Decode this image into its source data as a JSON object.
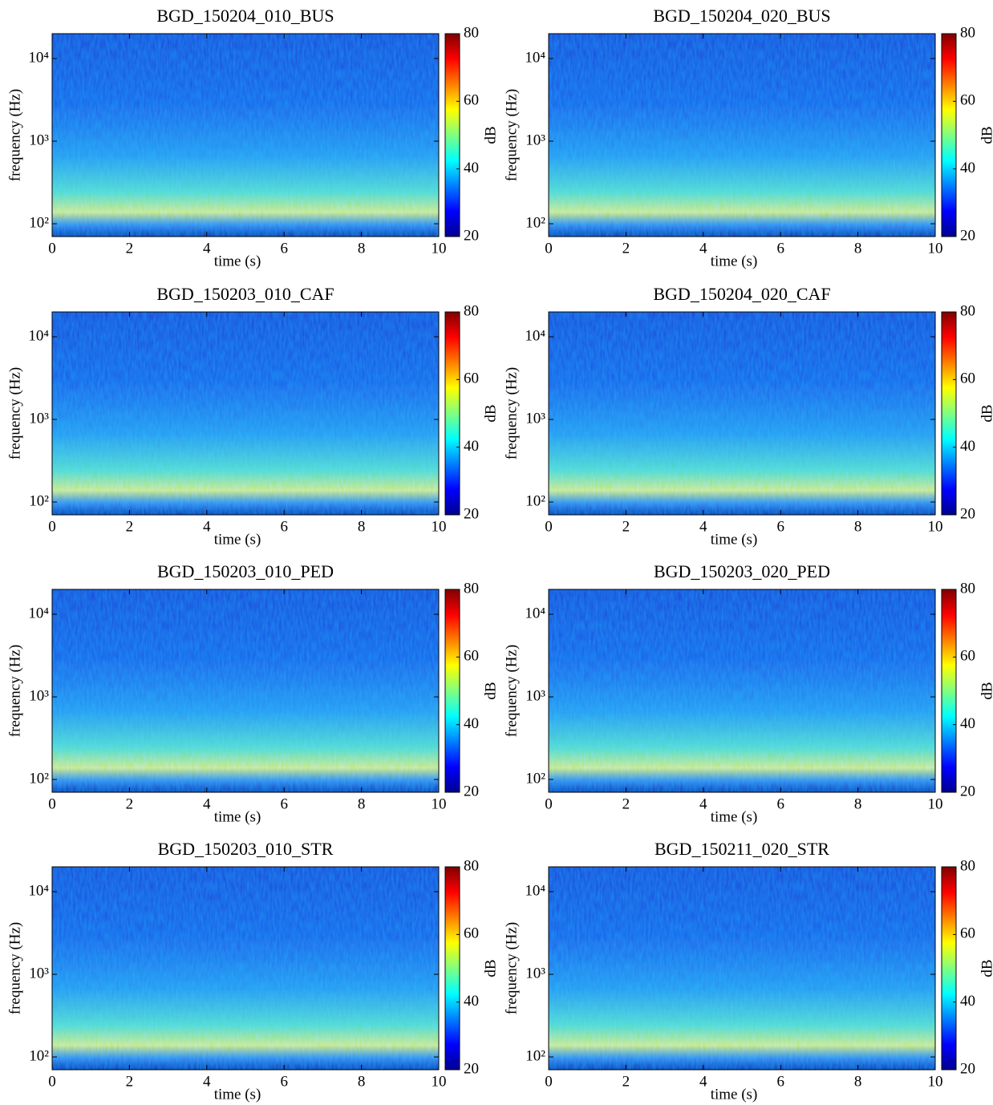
{
  "chart_data": [
    {
      "type": "spectrogram",
      "title": "BGD_150204_010_BUS",
      "xlabel": "time (s)",
      "ylabel": "frequency (Hz)",
      "xlim": [
        0,
        10
      ],
      "xticks": [
        0,
        2,
        4,
        6,
        8,
        10
      ],
      "ylim": [
        70,
        20000
      ],
      "log_y": true,
      "yticks": [
        {
          "value": 100,
          "label": "10²"
        },
        {
          "value": 1000,
          "label": "10³"
        },
        {
          "value": 10000,
          "label": "10⁴"
        }
      ],
      "colormap": "jet",
      "colorbar": {
        "label": "dB",
        "lim": [
          20,
          80
        ],
        "ticks": [
          20,
          40,
          60,
          80
        ]
      }
    },
    {
      "type": "spectrogram",
      "title": "BGD_150204_020_BUS",
      "xlabel": "time (s)",
      "ylabel": "frequency (Hz)",
      "xlim": [
        0,
        10
      ],
      "xticks": [
        0,
        2,
        4,
        6,
        8,
        10
      ],
      "ylim": [
        70,
        20000
      ],
      "log_y": true,
      "yticks": [
        {
          "value": 100,
          "label": "10²"
        },
        {
          "value": 1000,
          "label": "10³"
        },
        {
          "value": 10000,
          "label": "10⁴"
        }
      ],
      "colormap": "jet",
      "colorbar": {
        "label": "dB",
        "lim": [
          20,
          80
        ],
        "ticks": [
          20,
          40,
          60,
          80
        ]
      }
    },
    {
      "type": "spectrogram",
      "title": "BGD_150203_010_CAF",
      "xlabel": "time (s)",
      "ylabel": "frequency (Hz)",
      "xlim": [
        0,
        10
      ],
      "xticks": [
        0,
        2,
        4,
        6,
        8,
        10
      ],
      "ylim": [
        70,
        20000
      ],
      "log_y": true,
      "yticks": [
        {
          "value": 100,
          "label": "10²"
        },
        {
          "value": 1000,
          "label": "10³"
        },
        {
          "value": 10000,
          "label": "10⁴"
        }
      ],
      "colormap": "jet",
      "colorbar": {
        "label": "dB",
        "lim": [
          20,
          80
        ],
        "ticks": [
          20,
          40,
          60,
          80
        ]
      }
    },
    {
      "type": "spectrogram",
      "title": "BGD_150204_020_CAF",
      "xlabel": "time (s)",
      "ylabel": "frequency (Hz)",
      "xlim": [
        0,
        10
      ],
      "xticks": [
        0,
        2,
        4,
        6,
        8,
        10
      ],
      "ylim": [
        70,
        20000
      ],
      "log_y": true,
      "yticks": [
        {
          "value": 100,
          "label": "10²"
        },
        {
          "value": 1000,
          "label": "10³"
        },
        {
          "value": 10000,
          "label": "10⁴"
        }
      ],
      "colormap": "jet",
      "colorbar": {
        "label": "dB",
        "lim": [
          20,
          80
        ],
        "ticks": [
          20,
          40,
          60,
          80
        ]
      }
    },
    {
      "type": "spectrogram",
      "title": "BGD_150203_010_PED",
      "xlabel": "time (s)",
      "ylabel": "frequency (Hz)",
      "xlim": [
        0,
        10
      ],
      "xticks": [
        0,
        2,
        4,
        6,
        8,
        10
      ],
      "ylim": [
        70,
        20000
      ],
      "log_y": true,
      "yticks": [
        {
          "value": 100,
          "label": "10²"
        },
        {
          "value": 1000,
          "label": "10³"
        },
        {
          "value": 10000,
          "label": "10⁴"
        }
      ],
      "colormap": "jet",
      "colorbar": {
        "label": "dB",
        "lim": [
          20,
          80
        ],
        "ticks": [
          20,
          40,
          60,
          80
        ]
      }
    },
    {
      "type": "spectrogram",
      "title": "BGD_150203_020_PED",
      "xlabel": "time (s)",
      "ylabel": "frequency (Hz)",
      "xlim": [
        0,
        10
      ],
      "xticks": [
        0,
        2,
        4,
        6,
        8,
        10
      ],
      "ylim": [
        70,
        20000
      ],
      "log_y": true,
      "yticks": [
        {
          "value": 100,
          "label": "10²"
        },
        {
          "value": 1000,
          "label": "10³"
        },
        {
          "value": 10000,
          "label": "10⁴"
        }
      ],
      "colormap": "jet",
      "colorbar": {
        "label": "dB",
        "lim": [
          20,
          80
        ],
        "ticks": [
          20,
          40,
          60,
          80
        ]
      }
    },
    {
      "type": "spectrogram",
      "title": "BGD_150203_010_STR",
      "xlabel": "time (s)",
      "ylabel": "frequency (Hz)",
      "xlim": [
        0,
        10
      ],
      "xticks": [
        0,
        2,
        4,
        6,
        8,
        10
      ],
      "ylim": [
        70,
        20000
      ],
      "log_y": true,
      "yticks": [
        {
          "value": 100,
          "label": "10²"
        },
        {
          "value": 1000,
          "label": "10³"
        },
        {
          "value": 10000,
          "label": "10⁴"
        }
      ],
      "colormap": "jet",
      "colorbar": {
        "label": "dB",
        "lim": [
          20,
          80
        ],
        "ticks": [
          20,
          40,
          60,
          80
        ]
      }
    },
    {
      "type": "spectrogram",
      "title": "BGD_150211_020_STR",
      "xlabel": "time (s)",
      "ylabel": "frequency (Hz)",
      "xlim": [
        0,
        10
      ],
      "xticks": [
        0,
        2,
        4,
        6,
        8,
        10
      ],
      "ylim": [
        70,
        20000
      ],
      "log_y": true,
      "yticks": [
        {
          "value": 100,
          "label": "10²"
        },
        {
          "value": 1000,
          "label": "10³"
        },
        {
          "value": 10000,
          "label": "10⁴"
        }
      ],
      "colormap": "jet",
      "colorbar": {
        "label": "dB",
        "lim": [
          20,
          80
        ],
        "ticks": [
          20,
          40,
          60,
          80
        ]
      }
    }
  ]
}
